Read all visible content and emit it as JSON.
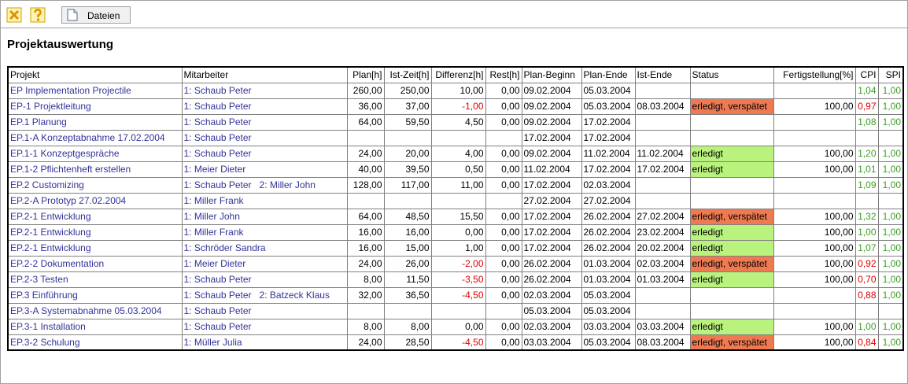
{
  "toolbar": {
    "button": "Dateien"
  },
  "title": "Projektauswertung",
  "table": {
    "header": [
      "Projekt",
      "Mitarbeiter",
      "Plan[h]",
      "Ist-Zeit[h]",
      "Differenz[h]",
      "Rest[h]",
      "Plan-Beginn",
      "Plan-Ende",
      "Ist-Ende",
      "Status",
      "Fertigstellung[%]",
      "CPI",
      "SPI"
    ],
    "rows": [
      [
        "EP Implementation Projectile",
        "1: Schaub Peter",
        "260,00",
        "250,00",
        "10,00",
        "0,00",
        "09.02.2004",
        "05.03.2004",
        null,
        null,
        null,
        "1,04",
        "1,00"
      ],
      [
        "EP-1 Projektleitung",
        "1: Schaub Peter",
        "36,00",
        "37,00",
        "-1,00",
        "0,00",
        "09.02.2004",
        "05.03.2004",
        "08.03.2004",
        "erledigt, verspätet",
        "100,00",
        "0,97",
        "1,00"
      ],
      [
        "EP.1 Planung",
        "1: Schaub Peter",
        "64,00",
        "59,50",
        "4,50",
        "0,00",
        "09.02.2004",
        "17.02.2004",
        null,
        null,
        null,
        "1,08",
        "1,00"
      ],
      [
        "EP.1-A Konzeptabnahme 17.02.2004",
        "1: Schaub Peter",
        null,
        null,
        null,
        null,
        "17.02.2004",
        "17.02.2004",
        null,
        null,
        null,
        null,
        null
      ],
      [
        "EP.1-1 Konzeptgespräche",
        "1: Schaub Peter",
        "24,00",
        "20,00",
        "4,00",
        "0,00",
        "09.02.2004",
        "11.02.2004",
        "11.02.2004",
        "erledigt",
        "100,00",
        "1,20",
        "1,00"
      ],
      [
        "EP.1-2 Pflichtenheft erstellen",
        "1: Meier Dieter",
        "40,00",
        "39,50",
        "0,50",
        "0,00",
        "11.02.2004",
        "17.02.2004",
        "17.02.2004",
        "erledigt",
        "100,00",
        "1,01",
        "1,00"
      ],
      [
        "EP.2 Customizing",
        "1: Schaub Peter   2: Miller John",
        "128,00",
        "117,00",
        "11,00",
        "0,00",
        "17.02.2004",
        "02.03.2004",
        null,
        null,
        null,
        "1,09",
        "1,00"
      ],
      [
        "EP.2-A Prototyp 27.02.2004",
        "1: Miller Frank",
        null,
        null,
        null,
        null,
        "27.02.2004",
        "27.02.2004",
        null,
        null,
        null,
        null,
        null
      ],
      [
        "EP.2-1 Entwicklung",
        "1: Miller John",
        "64,00",
        "48,50",
        "15,50",
        "0,00",
        "17.02.2004",
        "26.02.2004",
        "27.02.2004",
        "erledigt, verspätet",
        "100,00",
        "1,32",
        "1,00"
      ],
      [
        "EP.2-1 Entwicklung",
        "1: Miller Frank",
        "16,00",
        "16,00",
        "0,00",
        "0,00",
        "17.02.2004",
        "26.02.2004",
        "23.02.2004",
        "erledigt",
        "100,00",
        "1,00",
        "1,00"
      ],
      [
        "EP.2-1 Entwicklung",
        "1: Schröder Sandra",
        "16,00",
        "15,00",
        "1,00",
        "0,00",
        "17.02.2004",
        "26.02.2004",
        "20.02.2004",
        "erledigt",
        "100,00",
        "1,07",
        "1,00"
      ],
      [
        "EP.2-2 Dokumentation",
        "1: Meier Dieter",
        "24,00",
        "26,00",
        "-2,00",
        "0,00",
        "26.02.2004",
        "01.03.2004",
        "02.03.2004",
        "erledigt, verspätet",
        "100,00",
        "0,92",
        "1,00"
      ],
      [
        "EP.2-3 Testen",
        "1: Schaub Peter",
        "8,00",
        "11,50",
        "-3,50",
        "0,00",
        "26.02.2004",
        "01.03.2004",
        "01.03.2004",
        "erledigt",
        "100,00",
        "0,70",
        "1,00"
      ],
      [
        "EP.3 Einführung",
        "1: Schaub Peter   2: Batzeck Klaus",
        "32,00",
        "36,50",
        "-4,50",
        "0,00",
        "02.03.2004",
        "05.03.2004",
        null,
        null,
        null,
        "0,88",
        "1,00"
      ],
      [
        "EP.3-A Systemabnahme 05.03.2004",
        "1: Schaub Peter",
        null,
        null,
        null,
        null,
        "05.03.2004",
        "05.03.2004",
        null,
        null,
        null,
        null,
        null
      ],
      [
        "EP.3-1 Installation",
        "1: Schaub Peter",
        "8,00",
        "8,00",
        "0,00",
        "0,00",
        "02.03.2004",
        "03.03.2004",
        "03.03.2004",
        "erledigt",
        "100,00",
        "1,00",
        "1,00"
      ],
      [
        "EP.3-2 Schulung",
        "1: Müller Julia",
        "24,00",
        "28,50",
        "-4,50",
        "0,00",
        "03.03.2004",
        "05.03.2004",
        "08.03.2004",
        "erledigt, verspätet",
        "100,00",
        "0,84",
        "1,00"
      ]
    ]
  }
}
